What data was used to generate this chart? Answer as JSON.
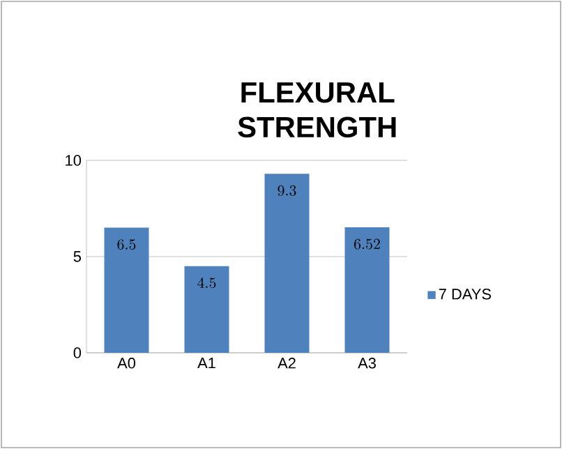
{
  "chart_data": {
    "type": "bar",
    "title": "FLEXURAL STRENGTH",
    "categories": [
      "A0",
      "A1",
      "A2",
      "A3"
    ],
    "series": [
      {
        "name": "7 DAYS",
        "color": "#4f81bd",
        "values": [
          6.5,
          4.5,
          9.3,
          6.52
        ]
      }
    ],
    "ylim": [
      0,
      10
    ],
    "yticks": [
      0,
      5,
      10
    ],
    "grid": "y",
    "legend": "right",
    "data_labels": true
  }
}
